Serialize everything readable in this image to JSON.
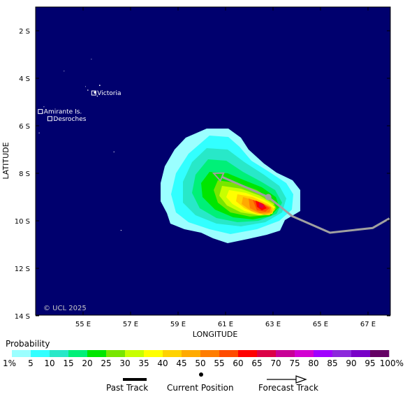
{
  "map": {
    "y_axis_title": "LATITUDE",
    "x_axis_title": "LONGITUDE",
    "lat_ticks": [
      "2 S",
      "4 S",
      "6 S",
      "8 S",
      "10 S",
      "12 S",
      "14 S"
    ],
    "lon_ticks": [
      "55 E",
      "57 E",
      "59 E",
      "61 E",
      "63 E",
      "65 E",
      "67 E"
    ],
    "copyright": "© UCL 2025",
    "ocean_color": "#00006e",
    "places": [
      {
        "name": "Victoria",
        "lon": 55.45,
        "lat": -4.62
      },
      {
        "name": "Amirante Is.",
        "lon": 53.2,
        "lat": -5.4
      },
      {
        "name": "Desroches",
        "lon": 53.6,
        "lat": -5.7
      }
    ],
    "current_position": {
      "lon": 62.8,
      "lat": -9.0
    },
    "forecast_track": [
      [
        62.8,
        -9.0
      ],
      [
        60.5,
        -8.0
      ]
    ],
    "track_tail": [
      [
        62.8,
        -9.0
      ],
      [
        63.8,
        -9.8
      ],
      [
        65.4,
        -10.5
      ],
      [
        67.2,
        -10.3
      ],
      [
        67.9,
        -9.9
      ]
    ]
  },
  "legend": {
    "title": "Probability",
    "labels": [
      "1%",
      "5",
      "10",
      "15",
      "20",
      "25",
      "30",
      "35",
      "40",
      "45",
      "50",
      "55",
      "60",
      "65",
      "70",
      "75",
      "80",
      "85",
      "90",
      "95",
      "100%"
    ],
    "colors": [
      "#9bffff",
      "#32ffff",
      "#28e8c8",
      "#00f078",
      "#00e600",
      "#78e600",
      "#c8ff00",
      "#ffff00",
      "#ffd200",
      "#ffaa00",
      "#ff7d00",
      "#ff4b00",
      "#ff0000",
      "#dc0046",
      "#c80096",
      "#d200d2",
      "#a000ff",
      "#8c28dc",
      "#7800c8",
      "#640064"
    ]
  },
  "key": {
    "past_track": "Past Track",
    "current_position": "Current Position",
    "forecast_track": "Forecast Track"
  }
}
